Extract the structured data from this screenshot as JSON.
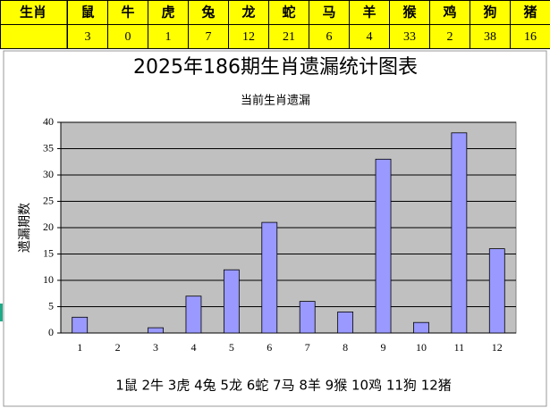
{
  "table": {
    "corner": "生肖",
    "animals": [
      "鼠",
      "牛",
      "虎",
      "兔",
      "龙",
      "蛇",
      "马",
      "羊",
      "猴",
      "鸡",
      "狗",
      "猪"
    ]
  },
  "page_title": "2025年186期生肖遗漏统计图表",
  "chart_data": {
    "type": "bar",
    "title": "当前生肖遗漏",
    "y_label": "遗漏期数",
    "categories": [
      "1",
      "2",
      "3",
      "4",
      "5",
      "6",
      "7",
      "8",
      "9",
      "10",
      "11",
      "12"
    ],
    "values": [
      3,
      0,
      1,
      7,
      12,
      21,
      6,
      4,
      33,
      2,
      38,
      16
    ],
    "color": "#9999ff",
    "plot_background": "#c0c0c0",
    "ylim": [
      0,
      40
    ],
    "yticks": [
      0,
      5,
      10,
      15,
      20,
      25,
      30,
      35,
      40
    ],
    "grid": true,
    "caption": "1鼠 2牛 3虎 4兔 5龙 6蛇 7马 8羊 9猴 10鸡 11狗 12猪"
  }
}
